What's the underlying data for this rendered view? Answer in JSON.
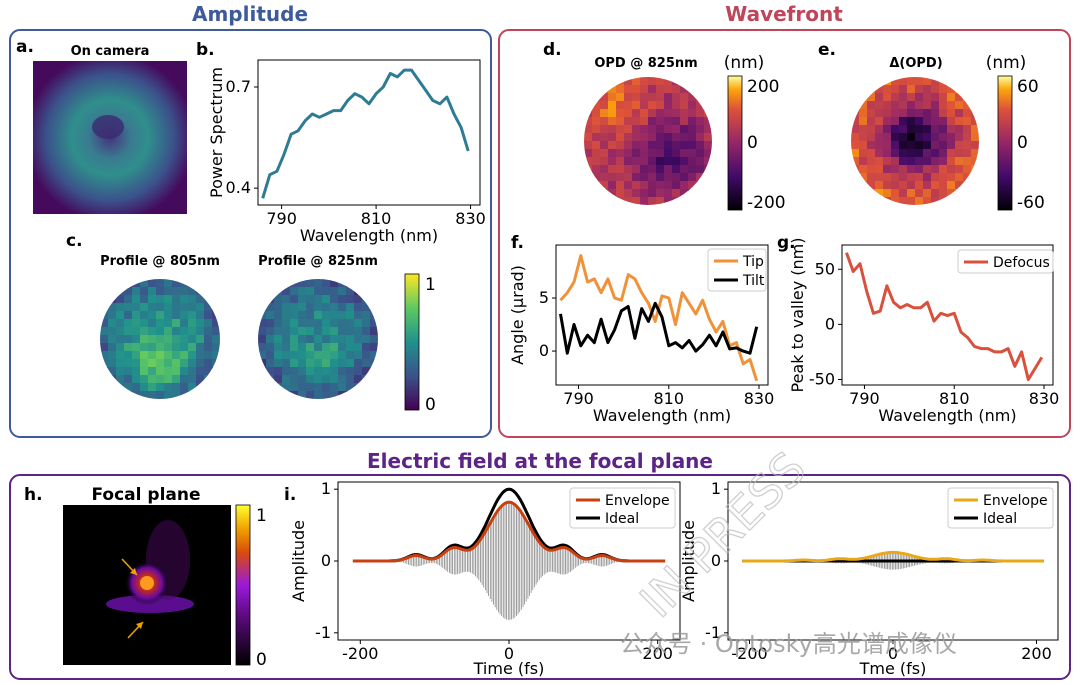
{
  "sections": {
    "amplitude": "Amplitude",
    "wavefront": "Wavefront",
    "efield": "Electric field at the focal plane"
  },
  "panels": {
    "a": {
      "letter": "a.",
      "title": "On camera"
    },
    "b": {
      "letter": "b."
    },
    "c": {
      "letter": "c.",
      "title1": "Profile @ 805nm",
      "title2": "Profile @ 825nm",
      "cbar_ticks": [
        "1",
        "0"
      ]
    },
    "d": {
      "letter": "d.",
      "title": "OPD @ 825nm",
      "unit": "(nm)",
      "cbar_ticks": [
        "200",
        "0",
        "-200"
      ]
    },
    "e": {
      "letter": "e.",
      "title": "Δ(OPD)",
      "unit": "(nm)",
      "cbar_ticks": [
        "60",
        "0",
        "-60"
      ]
    },
    "f": {
      "letter": "f."
    },
    "g": {
      "letter": "g."
    },
    "h": {
      "letter": "h.",
      "title": "Focal plane",
      "cbar_ticks": [
        "1",
        "0"
      ]
    },
    "i": {
      "letter": "i."
    }
  },
  "watermark": {
    "diagonal": "IN PRESS",
    "caption": "公众号 · Optosky高光谱成像仪"
  },
  "colors": {
    "amplitude_frame": "#3e5a9a",
    "wavefront_frame": "#c0445a",
    "efield_frame": "#5b2486",
    "spectrum_line": "#2e7c94",
    "tip": "#f0923a",
    "tilt": "#000000",
    "defocus": "#d9503c",
    "envelope_left": "#c8400f",
    "envelope_right": "#e8a818",
    "ideal": "#000000",
    "carrier": "#888888"
  },
  "chart_data": [
    {
      "id": "b",
      "type": "line",
      "xlabel": "Wavelength (nm)",
      "ylabel": "Power Spectrum",
      "xlim": [
        785,
        832
      ],
      "ylim": [
        0.35,
        0.78
      ],
      "xticks": [
        790,
        810,
        830
      ],
      "yticks": [
        0.4,
        0.7
      ],
      "series": [
        {
          "x": [
            786,
            787.5,
            789,
            790.5,
            792,
            793.5,
            795,
            796.5,
            798,
            799.5,
            801,
            802.5,
            804,
            805.5,
            807,
            808.5,
            810,
            811.5,
            813,
            814.5,
            816,
            817.5,
            819,
            820.5,
            822,
            823.5,
            825,
            826.5,
            828,
            829.5
          ],
          "values": [
            0.37,
            0.44,
            0.45,
            0.5,
            0.56,
            0.57,
            0.6,
            0.62,
            0.61,
            0.62,
            0.63,
            0.63,
            0.66,
            0.68,
            0.67,
            0.65,
            0.68,
            0.7,
            0.74,
            0.73,
            0.75,
            0.75,
            0.72,
            0.69,
            0.66,
            0.65,
            0.67,
            0.62,
            0.58,
            0.51
          ]
        }
      ]
    },
    {
      "id": "f",
      "type": "line",
      "xlabel": "Wavelength (nm)",
      "ylabel": "Angle (µrad)",
      "xlim": [
        785,
        832
      ],
      "ylim": [
        -3.2,
        10
      ],
      "xticks": [
        790,
        810,
        830
      ],
      "yticks": [
        0,
        5
      ],
      "legend": "top-right",
      "series": [
        {
          "name": "Tip",
          "x": [
            786,
            787.5,
            789,
            790.5,
            792,
            793.5,
            795,
            796.5,
            798,
            799.5,
            801,
            802.5,
            804,
            805.5,
            807,
            808.5,
            810,
            811.5,
            813,
            814.5,
            816,
            817.5,
            819,
            820.5,
            822,
            823.5,
            825,
            826.5,
            828,
            829.5
          ],
          "values": [
            4.8,
            5.5,
            6.5,
            9.0,
            6.5,
            6.8,
            5.5,
            6.8,
            5.0,
            4.8,
            7.2,
            6.8,
            5.5,
            4.5,
            2.8,
            5.2,
            5.0,
            2.5,
            5.5,
            4.5,
            3.5,
            4.8,
            3.0,
            1.8,
            2.8,
            0.5,
            0.8,
            -1.2,
            -0.8,
            -2.8
          ]
        },
        {
          "name": "Tilt",
          "x": [
            786,
            787.5,
            789,
            790.5,
            792,
            793.5,
            795,
            796.5,
            798,
            799.5,
            801,
            802.5,
            804,
            805.5,
            807,
            808.5,
            810,
            811.5,
            813,
            814.5,
            816,
            817.5,
            819,
            820.5,
            822,
            823.5,
            825,
            826.5,
            828,
            829.5
          ],
          "values": [
            3.5,
            -0.2,
            2.5,
            0.5,
            1.5,
            0.8,
            3.0,
            0.8,
            2.0,
            3.8,
            4.2,
            1.2,
            4.0,
            2.8,
            4.5,
            3.2,
            0.5,
            0.8,
            0.3,
            1.0,
            0.0,
            0.6,
            1.5,
            0.5,
            1.8,
            0.2,
            0.3,
            0.0,
            -0.2,
            2.3
          ]
        }
      ]
    },
    {
      "id": "g",
      "type": "line",
      "xlabel": "Wavelength (nm)",
      "ylabel": "Peak to valley (nm)",
      "xlim": [
        785,
        832
      ],
      "ylim": [
        -55,
        72
      ],
      "xticks": [
        790,
        810,
        830
      ],
      "yticks": [
        50,
        0,
        -50
      ],
      "legend": "top-right",
      "series": [
        {
          "name": "Defocus",
          "x": [
            786,
            787.5,
            789,
            790.5,
            792,
            793.5,
            795,
            796.5,
            798,
            799.5,
            801,
            802.5,
            804,
            805.5,
            807,
            808.5,
            810,
            811.5,
            813,
            814.5,
            816,
            817.5,
            819,
            820.5,
            822,
            823.5,
            825,
            826.5,
            828,
            829.5
          ],
          "values": [
            65,
            48,
            55,
            30,
            10,
            12,
            35,
            20,
            15,
            18,
            15,
            15,
            20,
            3,
            10,
            8,
            10,
            -7,
            -12,
            -20,
            -22,
            -22,
            -25,
            -25,
            -22,
            -38,
            -25,
            -50,
            -40,
            -30
          ]
        }
      ]
    },
    {
      "id": "i_left",
      "type": "line",
      "xlabel": "Time (fs)",
      "ylabel": "Amplitude",
      "xlim": [
        -230,
        230
      ],
      "ylim": [
        -1.1,
        1.1
      ],
      "xticks": [
        -200,
        0,
        200
      ],
      "yticks": [
        1,
        0,
        -1
      ],
      "legend": "top-right",
      "series": [
        {
          "name": "Envelope",
          "peak": 0.82,
          "sidelobe": 0.17
        },
        {
          "name": "Ideal",
          "peak": 1.0,
          "sidelobe": 0.2
        }
      ]
    },
    {
      "id": "i_right",
      "type": "line",
      "xlabel": "Tme (fs)",
      "ylabel": "Amplitude",
      "xlim": [
        -230,
        230
      ],
      "ylim": [
        -1.1,
        1.1
      ],
      "xticks": [
        -200,
        0,
        200
      ],
      "yticks": [
        1,
        0,
        -1
      ],
      "legend": "top-right",
      "series": [
        {
          "name": "Envelope",
          "peak": 0.12,
          "sidelobe": 0.03
        },
        {
          "name": "Ideal",
          "peak": 0.0,
          "sidelobe": 0.0
        }
      ]
    }
  ]
}
